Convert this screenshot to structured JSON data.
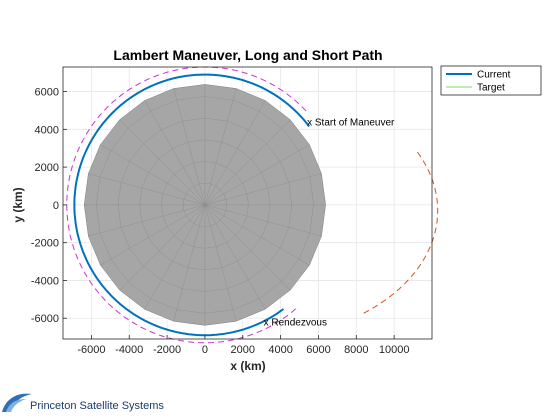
{
  "footer": {
    "company": "Princeton Satellite Systems"
  },
  "chart_data": {
    "type": "line",
    "title": "Lambert Maneuver, Long and Short Path",
    "xlabel": "x (km)",
    "ylabel": "y (km)",
    "xlim": [
      -7500,
      12000
    ],
    "ylim": [
      -7100,
      7300
    ],
    "xticks": [
      -6000,
      -4000,
      -2000,
      0,
      2000,
      4000,
      6000,
      8000,
      10000
    ],
    "yticks": [
      -6000,
      -4000,
      -2000,
      0,
      2000,
      4000,
      6000
    ],
    "xticklabels": [
      "-6000",
      "-4000",
      "-2000",
      "0",
      "2000",
      "4000",
      "6000",
      "8000",
      "10000"
    ],
    "yticklabels": [
      "-6000",
      "-4000",
      "-2000",
      "0",
      "2000",
      "4000",
      "6000"
    ],
    "grid": true,
    "legend": {
      "placement": "outside-top-right",
      "entries": [
        "Current",
        "Target"
      ]
    },
    "earth": {
      "radius_km": 6378,
      "color": "#a6a6a6"
    },
    "series": [
      {
        "name": "Current",
        "color": "#0072bd",
        "style": "solid",
        "kind": "circle_arc",
        "radius": 6900,
        "start_deg": 37,
        "end_deg": -53,
        "direction": "ccw"
      },
      {
        "name": "Target",
        "color": "#7cdc6a",
        "style": "solid",
        "kind": "circle_arc",
        "radius": 6900,
        "start_deg": 53,
        "end_deg": -62,
        "direction": "ccw"
      },
      {
        "color": "#d95319",
        "style": "dashed",
        "kind": "ellipse_arc",
        "center": [
          2500,
          -300
        ],
        "semi_axes": [
          9800,
          6800
        ],
        "start_deg": 27,
        "end_deg": -54,
        "direction": "cw"
      },
      {
        "color": "#cc33cc",
        "style": "dashed",
        "kind": "circle_arc",
        "radius": 7300,
        "start_deg": 43,
        "end_deg": -48,
        "direction": "ccw"
      }
    ],
    "annotations": [
      {
        "text": "x Start of Maneuver",
        "x": 5400,
        "y": 4400
      },
      {
        "text": "x Rendezvous",
        "x": 3100,
        "y": -6200
      }
    ]
  }
}
